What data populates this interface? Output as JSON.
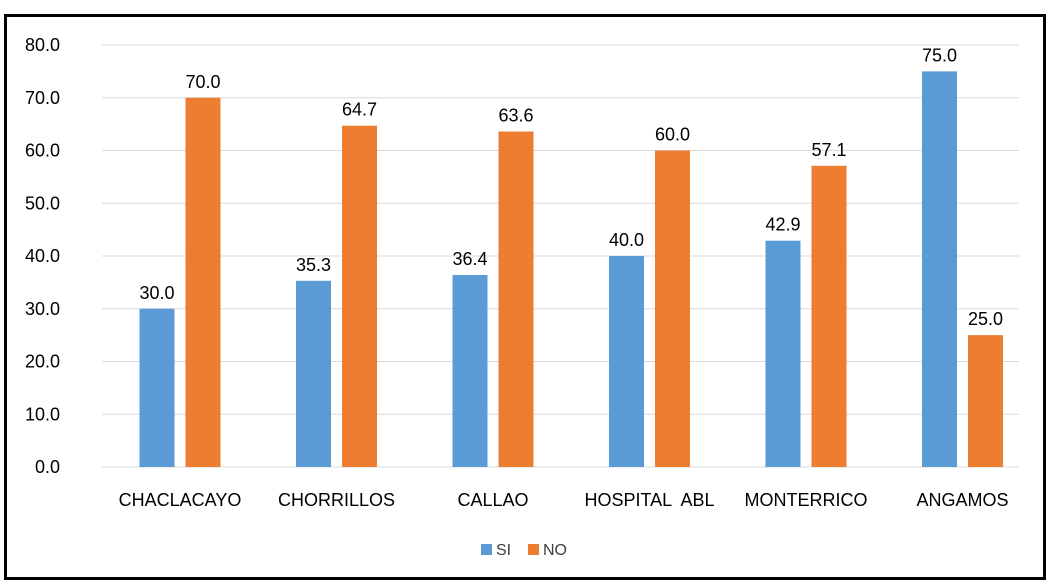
{
  "chart_data": {
    "type": "bar",
    "categories": [
      "CHACLACAYO",
      "CHORRILLOS",
      "CALLAO",
      "HOSPITAL  ABL",
      "MONTERRICO",
      "ANGAMOS"
    ],
    "series": [
      {
        "name": "SI",
        "color": "#5b9bd5",
        "values": [
          30.0,
          35.3,
          36.4,
          40.0,
          42.9,
          75.0
        ],
        "labels": [
          "30.0",
          "35.3",
          "36.4",
          "40.0",
          "42.9",
          "75.0"
        ]
      },
      {
        "name": "NO",
        "color": "#ed7d31",
        "values": [
          70.0,
          64.7,
          63.6,
          60.0,
          57.1,
          25.0
        ],
        "labels": [
          "70.0",
          "64.7",
          "63.6",
          "60.0",
          "57.1",
          "25.0"
        ]
      }
    ],
    "title": "",
    "xlabel": "",
    "ylabel": "",
    "ylim": [
      0,
      80
    ],
    "yticks": [
      "0.0",
      "10.0",
      "20.0",
      "30.0",
      "40.0",
      "50.0",
      "60.0",
      "70.0",
      "80.0"
    ],
    "grid": true,
    "gridline_color": "#d9d9d9",
    "legend": "bottom"
  }
}
